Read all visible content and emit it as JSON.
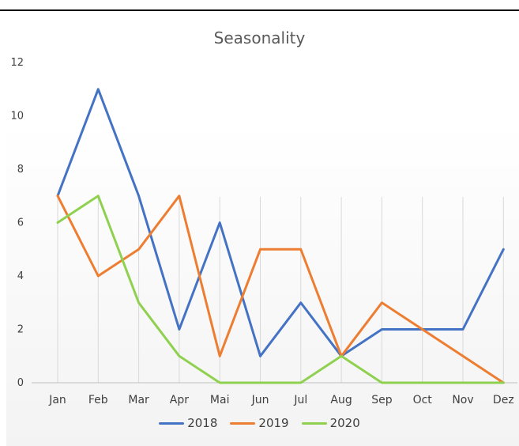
{
  "chart_data": {
    "type": "line",
    "title": "Seasonality",
    "xlabel": "",
    "ylabel": "",
    "categories": [
      "Jan",
      "Feb",
      "Mar",
      "Apr",
      "Mai",
      "Jun",
      "Jul",
      "Aug",
      "Sep",
      "Oct",
      "Nov",
      "Dez"
    ],
    "ylim": [
      0,
      12
    ],
    "yticks": [
      0,
      2,
      4,
      6,
      8,
      10,
      12
    ],
    "grid": "vertical",
    "legend_position": "bottom",
    "series": [
      {
        "name": "2018",
        "color": "#4472c4",
        "values": [
          7,
          11,
          7,
          2,
          6,
          1,
          3,
          1,
          2,
          2,
          2,
          5
        ]
      },
      {
        "name": "2019",
        "color": "#ed7d31",
        "values": [
          7,
          4,
          5,
          7,
          1,
          5,
          5,
          1,
          3,
          2,
          1,
          0
        ]
      },
      {
        "name": "2020",
        "color": "#8fd14f",
        "values": [
          6,
          7,
          3,
          1,
          0,
          0,
          0,
          1,
          0,
          0,
          0,
          0
        ]
      }
    ]
  }
}
